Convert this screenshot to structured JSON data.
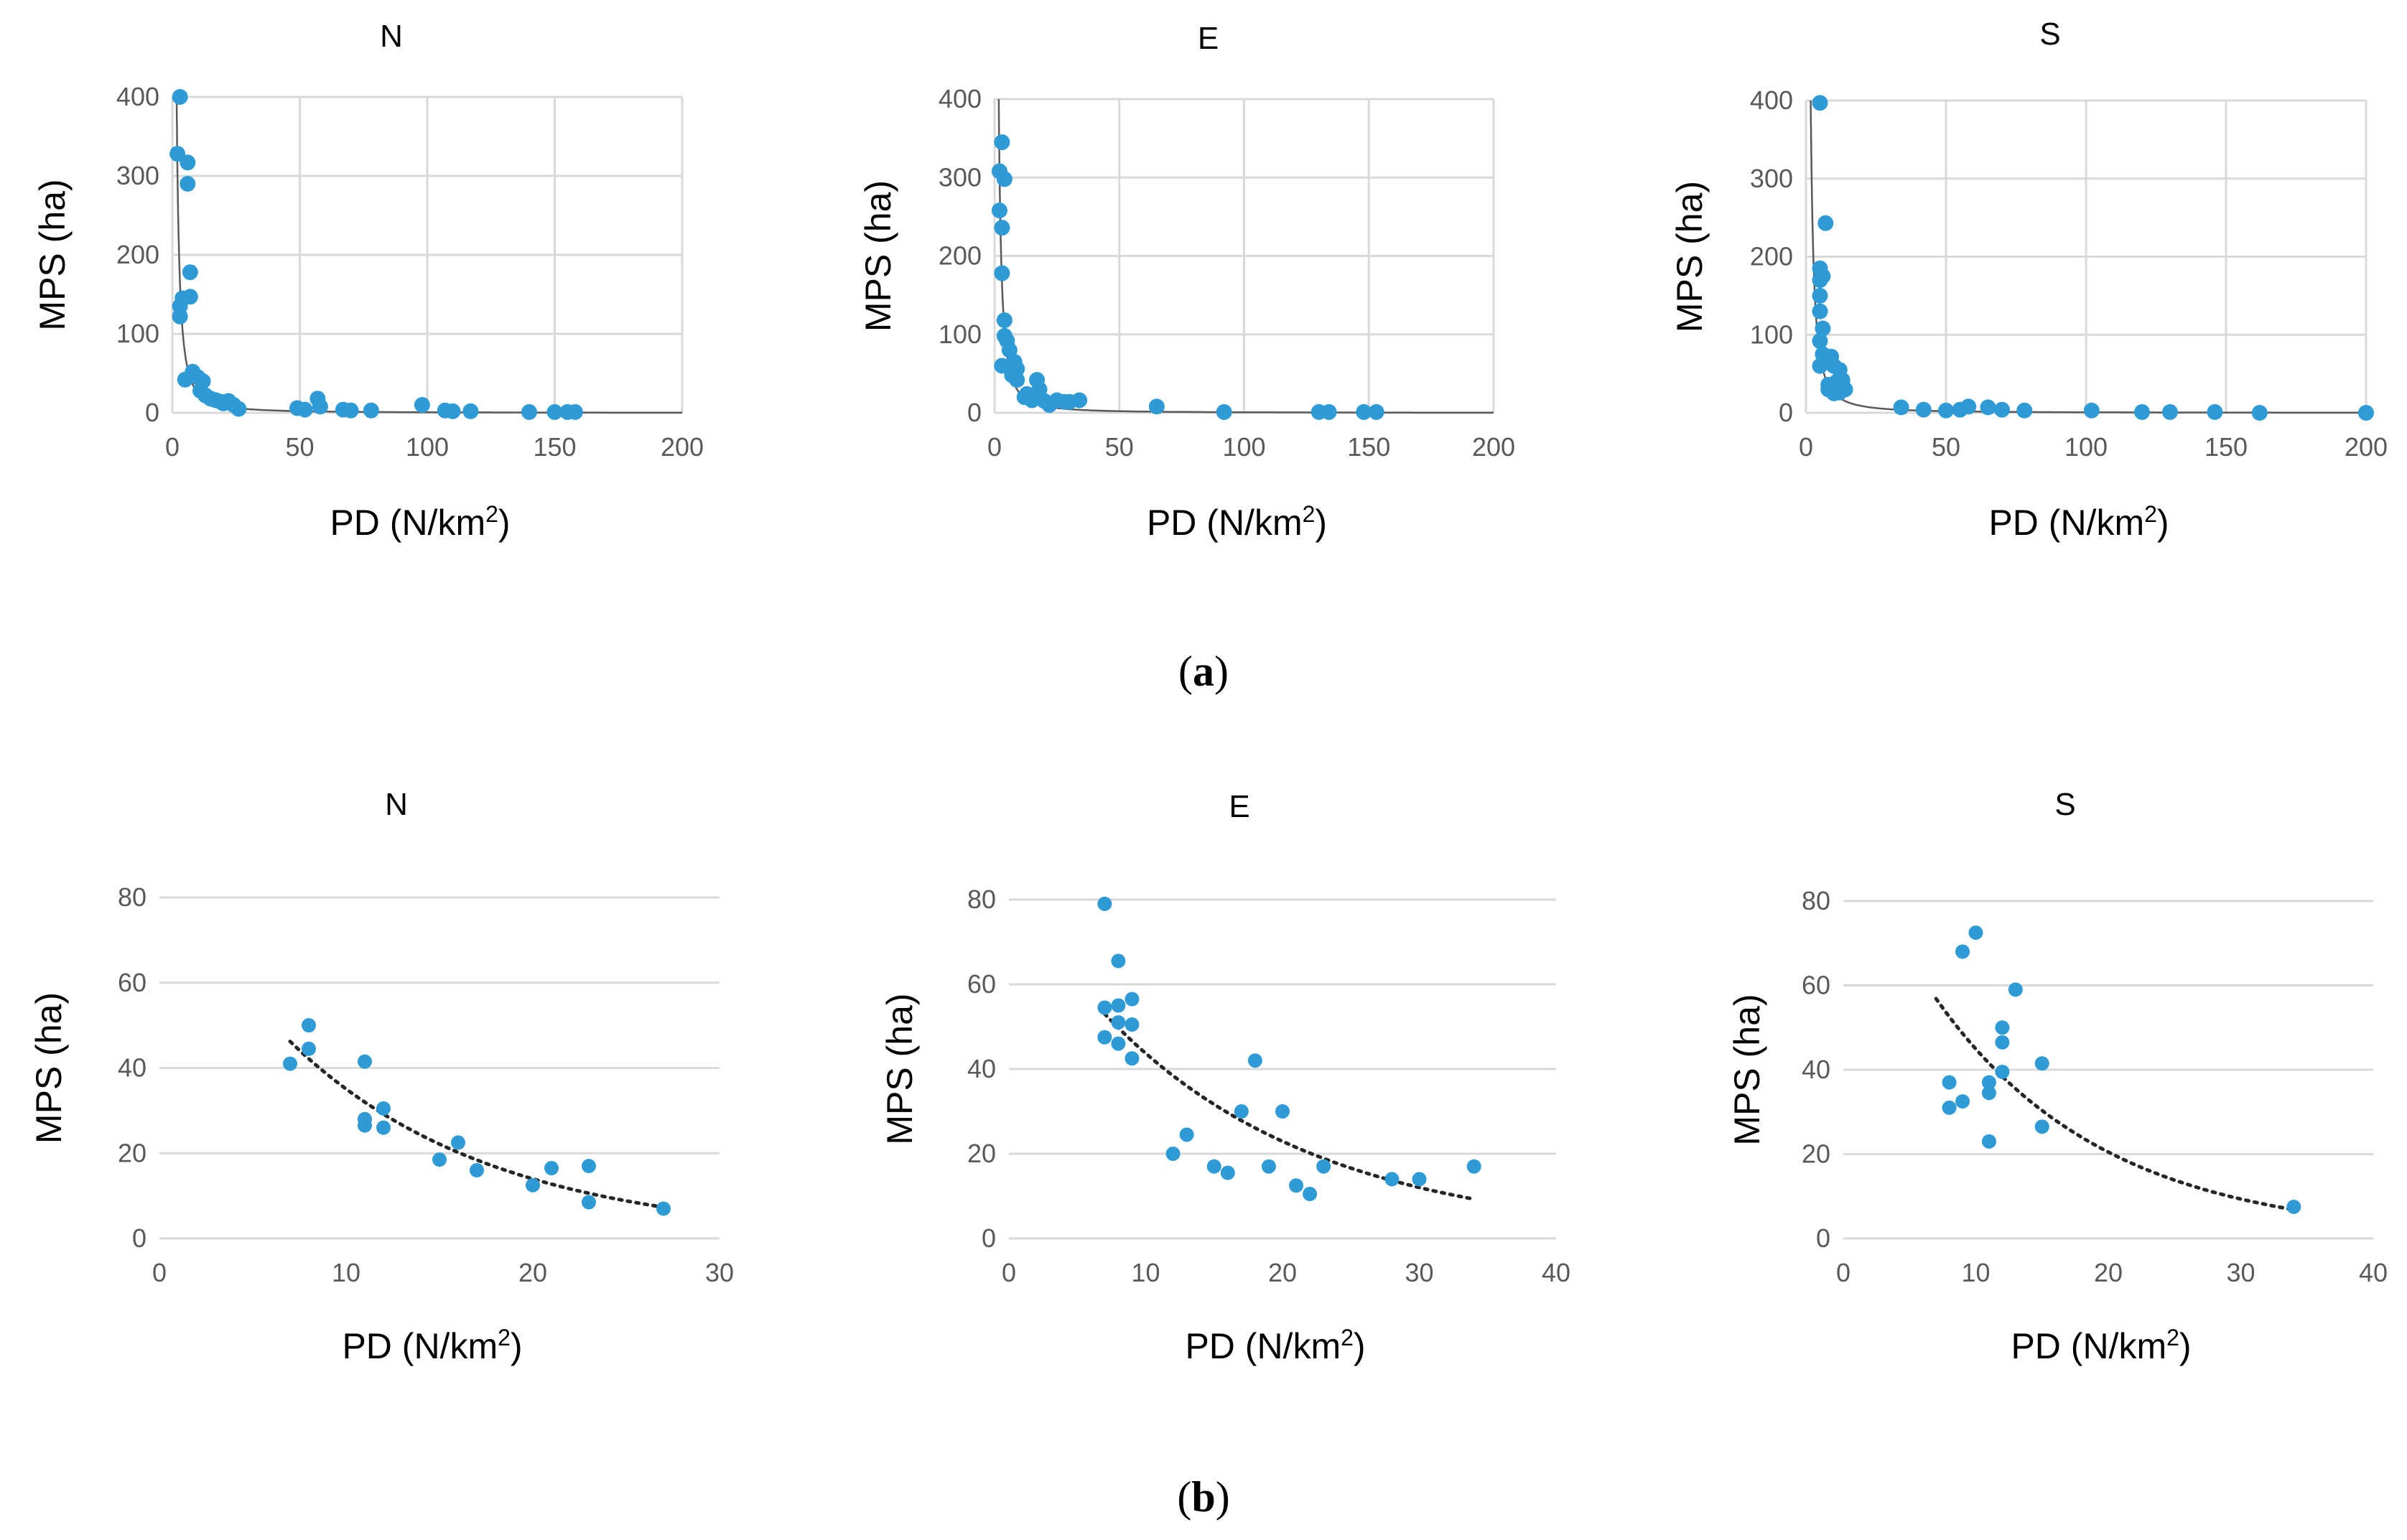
{
  "chart_data": [
    {
      "type": "scatter",
      "panel": "a",
      "title": "N",
      "xlabel": "PD",
      "xunit": "(N/km",
      "xunit_sup": "2",
      "xunit_tail": ")",
      "ylabel": "MPS  (ha)",
      "xlim": [
        0,
        200
      ],
      "ylim": [
        0,
        400
      ],
      "xticks": [
        0,
        50,
        100,
        150,
        200
      ],
      "yticks": [
        0,
        100,
        200,
        300,
        400
      ],
      "grid": true,
      "trendline": "power",
      "trend": {
        "a": 900,
        "b": -1.55
      },
      "x": [
        3,
        2,
        6,
        6,
        4,
        7,
        3,
        3,
        7,
        5,
        8,
        10,
        12,
        11,
        13,
        15,
        17,
        19,
        20,
        22,
        24,
        26,
        49,
        52,
        57,
        58,
        67,
        70,
        78,
        98,
        107,
        110,
        117,
        140,
        150,
        155,
        158
      ],
      "y": [
        400,
        328,
        317,
        290,
        145,
        178,
        122,
        135,
        147,
        42,
        52,
        45,
        40,
        28,
        22,
        18,
        16,
        14,
        12,
        15,
        10,
        5,
        6,
        4,
        18,
        8,
        4,
        3,
        3,
        10,
        3,
        2,
        2,
        1,
        1,
        1,
        1
      ]
    },
    {
      "type": "scatter",
      "panel": "a",
      "title": "E",
      "xlabel": "PD",
      "xunit": "(N/km",
      "xunit_sup": "2",
      "xunit_tail": ")",
      "ylabel": "MPS  (ha)",
      "xlim": [
        0,
        200
      ],
      "ylim": [
        0,
        400
      ],
      "xticks": [
        0,
        50,
        100,
        150,
        200
      ],
      "yticks": [
        0,
        100,
        200,
        300,
        400
      ],
      "grid": true,
      "trendline": "power",
      "trend": {
        "a": 900,
        "b": -1.55
      },
      "x": [
        2,
        3,
        2,
        4,
        3,
        3,
        4,
        4,
        3,
        5,
        6,
        7,
        8,
        8,
        7,
        9,
        9,
        12,
        13,
        15,
        17,
        18,
        20,
        22,
        25,
        28,
        30,
        34,
        65,
        92,
        130,
        134,
        148,
        153
      ],
      "y": [
        308,
        345,
        258,
        298,
        236,
        178,
        118,
        98,
        60,
        92,
        80,
        55,
        65,
        50,
        48,
        42,
        56,
        20,
        24,
        16,
        42,
        30,
        15,
        10,
        16,
        14,
        14,
        16,
        8,
        1,
        1,
        1,
        1,
        1
      ]
    },
    {
      "type": "scatter",
      "panel": "a",
      "title": "S",
      "xlabel": "PD",
      "xunit": "(N/km",
      "xunit_sup": "2",
      "xunit_tail": ")",
      "ylabel": "MPS  (ha)",
      "xlim": [
        0,
        200
      ],
      "ylim": [
        0,
        400
      ],
      "xticks": [
        0,
        50,
        100,
        150,
        200
      ],
      "yticks": [
        0,
        100,
        200,
        300,
        400
      ],
      "grid": true,
      "trendline": "power",
      "trend": {
        "a": 900,
        "b": -1.55
      },
      "x": [
        5,
        5,
        5,
        6,
        7,
        5,
        5,
        6,
        5,
        6,
        5,
        8,
        9,
        10,
        12,
        11,
        13,
        8,
        10,
        12,
        14,
        11,
        34,
        42,
        50,
        55,
        58,
        65,
        70,
        78,
        102,
        120,
        130,
        146,
        162,
        200
      ],
      "y": [
        397,
        185,
        170,
        175,
        243,
        150,
        130,
        108,
        92,
        75,
        60,
        36,
        72,
        60,
        55,
        40,
        42,
        30,
        25,
        26,
        30,
        35,
        7,
        4,
        3,
        4,
        8,
        7,
        4,
        3,
        3,
        1,
        1,
        1,
        0,
        0
      ]
    },
    {
      "type": "scatter",
      "panel": "b",
      "title": "N",
      "xlabel": "PD",
      "xunit": "(N/km",
      "xunit_sup": "2",
      "xunit_tail": ")",
      "ylabel": "MPS  (ha)",
      "xlim": [
        0,
        30
      ],
      "ylim": [
        0,
        80
      ],
      "xticks": [
        0,
        10,
        20,
        30
      ],
      "yticks": [
        0,
        20,
        40,
        60,
        80
      ],
      "grid": true,
      "trendline": "exponential",
      "trend": {
        "a": 88,
        "b": -0.092,
        "x_from": 7,
        "x_to": 27
      },
      "x": [
        7,
        8,
        8,
        11,
        11,
        11,
        12,
        12,
        15,
        16,
        17,
        20,
        21,
        23,
        23,
        27
      ],
      "y": [
        41,
        50,
        44.5,
        41.5,
        28,
        26.5,
        30.5,
        26,
        18.5,
        22.5,
        16,
        12.5,
        16.5,
        17,
        8.5,
        7
      ]
    },
    {
      "type": "scatter",
      "panel": "b",
      "title": "E",
      "xlabel": "PD",
      "xunit": "(N/km",
      "xunit_sup": "2",
      "xunit_tail": ")",
      "ylabel": "MPS  (ha)",
      "xlim": [
        0,
        40
      ],
      "ylim": [
        0,
        80
      ],
      "xticks": [
        0,
        10,
        20,
        30,
        40
      ],
      "yticks": [
        0,
        20,
        40,
        60,
        80
      ],
      "grid": true,
      "trendline": "exponential",
      "trend": {
        "a": 83.3,
        "b": -0.0645,
        "x_from": 7,
        "x_to": 34
      },
      "x": [
        7,
        8,
        7,
        8,
        8,
        9,
        9,
        7,
        8,
        9,
        12,
        13,
        15,
        16,
        17,
        18,
        19,
        20,
        21,
        22,
        23,
        28,
        30,
        34
      ],
      "y": [
        79,
        65.5,
        54.5,
        55,
        51,
        56.5,
        50.5,
        47.5,
        46,
        42.5,
        20,
        24.5,
        17,
        15.5,
        30,
        42,
        17,
        30,
        12.5,
        10.5,
        17,
        14,
        14,
        17
      ]
    },
    {
      "type": "scatter",
      "panel": "b",
      "title": "S",
      "xlabel": "PD",
      "xunit": "(N/km",
      "xunit_sup": "2",
      "xunit_tail": ")",
      "ylabel": "MPS  (ha)",
      "xlim": [
        0,
        40
      ],
      "ylim": [
        0,
        80
      ],
      "xticks": [
        0,
        10,
        20,
        30,
        40
      ],
      "yticks": [
        0,
        20,
        40,
        60,
        80
      ],
      "grid": true,
      "trendline": "exponential",
      "trend": {
        "a": 98.5,
        "b": -0.0785,
        "x_from": 7,
        "x_to": 34
      },
      "x": [
        8,
        8,
        9,
        9,
        10,
        11,
        11,
        11,
        12,
        12,
        12,
        13,
        15,
        15,
        34
      ],
      "y": [
        37,
        31,
        32.5,
        68,
        72.5,
        23,
        34.5,
        37,
        39.5,
        46.5,
        50,
        59,
        41.5,
        26.5,
        7.5
      ]
    }
  ],
  "panel_labels": {
    "a": "a",
    "b": "b"
  }
}
